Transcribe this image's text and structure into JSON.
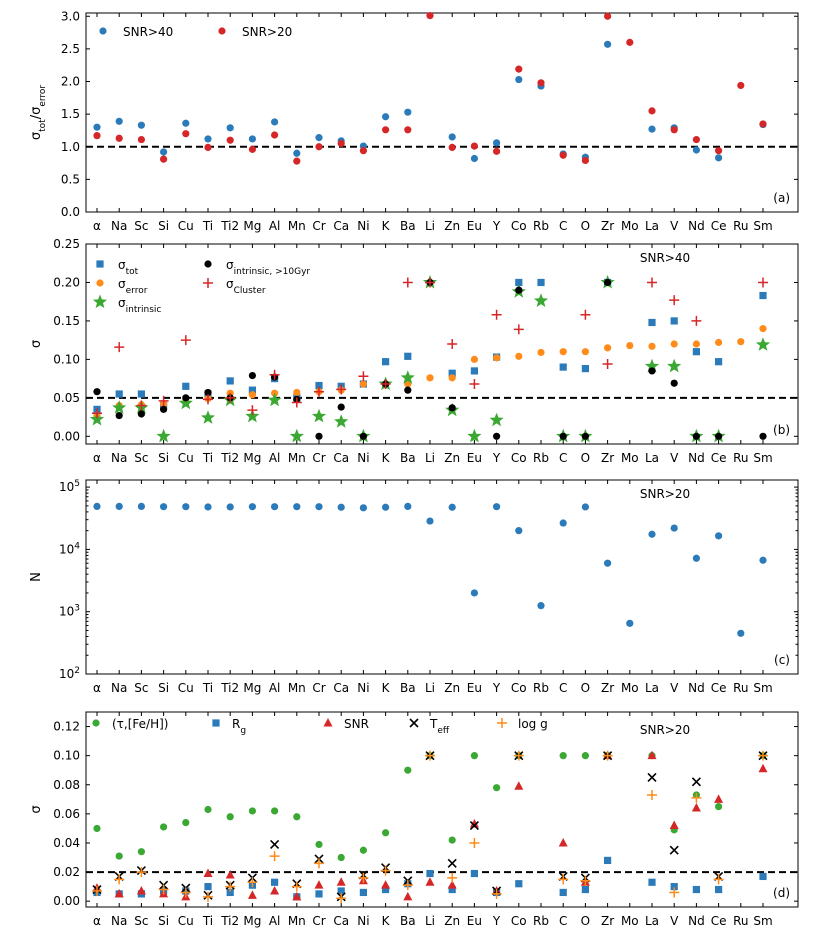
{
  "colors": {
    "blue": "#2b7bba",
    "red": "#d62728",
    "orange": "#ff8c1a",
    "green": "#3aa832",
    "black": "#000000"
  },
  "chart_data": [
    {
      "type": "scatter",
      "panel": "a",
      "title": "",
      "ylabel": "σ_tot/σ_error",
      "yscale": "linear",
      "ylim": [
        0,
        3.05
      ],
      "yticks": [
        0.0,
        0.5,
        1.0,
        1.5,
        2.0,
        2.5,
        3.0
      ],
      "ytick_labels": [
        "0.0",
        "0.5",
        "1.0",
        "1.5",
        "2.0",
        "2.5",
        "3.0"
      ],
      "reference_line": 1.0,
      "panel_label": "(a)",
      "annotation": "",
      "categories": [
        "α",
        "Na",
        "Sc",
        "Si",
        "Cu",
        "Ti",
        "Ti2",
        "Mg",
        "Al",
        "Mn",
        "Cr",
        "Ca",
        "Ni",
        "K",
        "Ba",
        "Li",
        "Zn",
        "Eu",
        "Y",
        "Co",
        "Rb",
        "C",
        "O",
        "Zr",
        "Mo",
        "La",
        "V",
        "Nd",
        "Ce",
        "Ru",
        "Sm"
      ],
      "series": [
        {
          "name": "SNR>40",
          "color": "blue",
          "marker": "circle",
          "values": [
            1.3,
            1.39,
            1.33,
            0.92,
            1.36,
            1.12,
            1.29,
            1.12,
            1.38,
            0.9,
            1.14,
            1.09,
            1.01,
            1.46,
            1.53,
            null,
            1.15,
            0.82,
            1.06,
            2.03,
            1.93,
            0.89,
            0.84,
            2.57,
            null,
            1.27,
            1.29,
            0.95,
            0.83,
            null,
            1.34
          ]
        },
        {
          "name": "SNR>20",
          "color": "red",
          "marker": "circle",
          "values": [
            1.17,
            1.13,
            1.11,
            0.81,
            1.2,
            0.99,
            1.1,
            0.96,
            1.18,
            0.78,
            1.0,
            1.05,
            0.94,
            1.26,
            1.26,
            3.01,
            0.99,
            1.01,
            0.93,
            2.19,
            1.98,
            0.87,
            0.79,
            3.0,
            2.6,
            1.55,
            1.26,
            1.11,
            0.94,
            1.94,
            1.35
          ]
        }
      ],
      "legend": {
        "position": "top-left",
        "entries": [
          "SNR>40",
          "SNR>20"
        ]
      }
    },
    {
      "type": "scatter",
      "panel": "b",
      "title": "",
      "ylabel": "σ",
      "yscale": "linear",
      "ylim": [
        -0.01,
        0.25
      ],
      "yticks": [
        0.0,
        0.05,
        0.1,
        0.15,
        0.2,
        0.25
      ],
      "ytick_labels": [
        "0.00",
        "0.05",
        "0.10",
        "0.15",
        "0.20",
        "0.25"
      ],
      "reference_line": 0.05,
      "panel_label": "(b)",
      "annotation": "SNR>40",
      "categories": [
        "α",
        "Na",
        "Sc",
        "Si",
        "Cu",
        "Ti",
        "Ti2",
        "Mg",
        "Al",
        "Mn",
        "Cr",
        "Ca",
        "Ni",
        "K",
        "Ba",
        "Li",
        "Zn",
        "Eu",
        "Y",
        "Co",
        "Rb",
        "C",
        "O",
        "Zr",
        "Mo",
        "La",
        "V",
        "Nd",
        "Ce",
        "Ru",
        "Sm"
      ],
      "series": [
        {
          "name": "σ_tot",
          "color": "blue",
          "marker": "square",
          "values": [
            0.035,
            0.055,
            0.055,
            0.04,
            0.065,
            0.055,
            0.072,
            0.06,
            0.075,
            0.05,
            0.066,
            0.065,
            0.068,
            0.097,
            0.104,
            null,
            0.082,
            0.085,
            0.103,
            0.2,
            0.2,
            0.09,
            0.088,
            0.2,
            null,
            0.148,
            0.15,
            0.11,
            0.097,
            null,
            0.183
          ]
        },
        {
          "name": "σ_error",
          "color": "orange",
          "marker": "circle",
          "values": [
            0.027,
            0.04,
            0.041,
            0.042,
            0.048,
            0.049,
            0.056,
            0.054,
            0.056,
            0.057,
            0.058,
            0.06,
            0.068,
            0.067,
            0.068,
            0.076,
            0.076,
            0.1,
            0.102,
            0.104,
            0.109,
            0.11,
            0.11,
            0.115,
            0.118,
            0.117,
            0.12,
            0.12,
            0.122,
            0.123,
            0.14
          ]
        },
        {
          "name": "σ_intrinsic",
          "color": "green",
          "marker": "star",
          "values": [
            0.022,
            0.037,
            0.037,
            0.0,
            0.043,
            0.024,
            0.047,
            0.026,
            0.047,
            0.0,
            0.026,
            0.019,
            0.0,
            0.068,
            0.076,
            0.2,
            0.034,
            0.0,
            0.021,
            0.188,
            0.176,
            0.0,
            0.0,
            0.2,
            null,
            0.091,
            0.091,
            0.0,
            0.0,
            null,
            0.119
          ]
        },
        {
          "name": "σ_intrinsic, >10Gyr",
          "color": "black",
          "marker": "circle",
          "values": [
            0.058,
            0.027,
            0.029,
            0.035,
            0.05,
            0.057,
            0.05,
            0.079,
            0.077,
            0.048,
            0.0,
            0.038,
            0.0,
            0.068,
            0.06,
            0.2,
            0.037,
            null,
            0.0,
            0.19,
            null,
            0.0,
            0.0,
            0.2,
            null,
            0.085,
            0.069,
            0.0,
            0.0,
            null,
            0.0
          ]
        },
        {
          "name": "σ_Cluster",
          "color": "red",
          "marker": "plus",
          "values": [
            0.03,
            0.116,
            0.04,
            0.046,
            0.125,
            0.048,
            0.05,
            0.034,
            0.08,
            0.044,
            0.058,
            0.061,
            0.078,
            0.068,
            0.2,
            0.2,
            0.12,
            0.068,
            0.158,
            0.139,
            null,
            null,
            0.158,
            0.094,
            null,
            0.2,
            0.177,
            0.15,
            null,
            null,
            0.2
          ]
        }
      ],
      "legend": {
        "position": "top-left",
        "entries": [
          "σ_tot",
          "σ_error",
          "σ_intrinsic",
          "σ_intrinsic, >10Gyr",
          "σ_Cluster"
        ]
      }
    },
    {
      "type": "scatter",
      "panel": "c",
      "title": "",
      "ylabel": "N",
      "yscale": "log",
      "ylim": [
        100,
        130000
      ],
      "yticks": [
        100,
        1000,
        10000,
        100000
      ],
      "ytick_labels": [
        "10^2",
        "10^3",
        "10^4",
        "10^5"
      ],
      "reference_line": null,
      "panel_label": "(c)",
      "annotation": "SNR>20",
      "categories": [
        "α",
        "Na",
        "Sc",
        "Si",
        "Cu",
        "Ti",
        "Ti2",
        "Mg",
        "Al",
        "Mn",
        "Cr",
        "Ca",
        "Ni",
        "K",
        "Ba",
        "Li",
        "Zn",
        "Eu",
        "Y",
        "Co",
        "Rb",
        "C",
        "O",
        "Zr",
        "Mo",
        "La",
        "V",
        "Nd",
        "Ce",
        "Ru",
        "Sm"
      ],
      "series": [
        {
          "name": "N",
          "color": "blue",
          "marker": "circle",
          "values": [
            49000,
            49000,
            49000,
            48500,
            48500,
            48000,
            48000,
            48500,
            48500,
            48500,
            48500,
            47500,
            46500,
            47500,
            49000,
            28500,
            47500,
            2000,
            48500,
            20000,
            1250,
            26500,
            48000,
            6000,
            650,
            17500,
            22000,
            7200,
            16500,
            450,
            6700
          ]
        }
      ]
    },
    {
      "type": "scatter",
      "panel": "d",
      "title": "",
      "ylabel": "σ",
      "yscale": "linear",
      "ylim": [
        -0.004,
        0.13
      ],
      "yticks": [
        0.0,
        0.02,
        0.04,
        0.06,
        0.08,
        0.1,
        0.12
      ],
      "ytick_labels": [
        "0.00",
        "0.02",
        "0.04",
        "0.06",
        "0.08",
        "0.10",
        "0.12"
      ],
      "reference_line": 0.02,
      "panel_label": "(d)",
      "annotation": "SNR>20",
      "categories": [
        "α",
        "Na",
        "Sc",
        "Si",
        "Cu",
        "Ti",
        "Ti2",
        "Mg",
        "Al",
        "Mn",
        "Cr",
        "Ca",
        "Ni",
        "K",
        "Ba",
        "Li",
        "Zn",
        "Eu",
        "Y",
        "Co",
        "Rb",
        "C",
        "O",
        "Zr",
        "Mo",
        "La",
        "V",
        "Nd",
        "Ce",
        "Ru",
        "Sm"
      ],
      "series": [
        {
          "name": "(τ,[Fe/H])",
          "color": "green",
          "marker": "circle",
          "values": [
            0.05,
            0.031,
            0.034,
            0.051,
            0.054,
            0.063,
            0.058,
            0.062,
            0.062,
            0.058,
            0.039,
            0.03,
            0.035,
            0.047,
            0.09,
            0.1,
            0.042,
            0.1,
            0.078,
            0.1,
            null,
            0.1,
            0.1,
            0.1,
            null,
            0.1,
            0.049,
            0.073,
            0.065,
            null,
            0.1
          ]
        },
        {
          "name": "R_g",
          "color": "blue",
          "marker": "square",
          "values": [
            0.006,
            0.005,
            0.005,
            0.007,
            0.007,
            0.01,
            0.006,
            0.011,
            0.013,
            0.003,
            0.005,
            0.007,
            0.006,
            0.008,
            0.012,
            0.019,
            0.008,
            0.019,
            0.006,
            0.012,
            null,
            0.006,
            0.008,
            0.028,
            null,
            0.013,
            0.01,
            0.008,
            0.008,
            null,
            0.017
          ]
        },
        {
          "name": "SNR",
          "color": "red",
          "marker": "triangle",
          "values": [
            0.009,
            0.005,
            0.007,
            0.005,
            0.003,
            0.019,
            0.018,
            0.004,
            0.007,
            0.003,
            0.011,
            0.013,
            0.014,
            0.011,
            0.003,
            0.013,
            0.011,
            0.053,
            0.007,
            0.079,
            null,
            0.04,
            0.013,
            0.1,
            null,
            0.1,
            0.052,
            0.064,
            0.07,
            null,
            0.091
          ]
        },
        {
          "name": "T_eff",
          "color": "black",
          "marker": "cross",
          "values": [
            0.008,
            0.017,
            0.021,
            0.011,
            0.009,
            0.004,
            0.011,
            0.016,
            0.039,
            0.012,
            0.029,
            0.003,
            0.018,
            0.023,
            0.014,
            0.1,
            0.026,
            0.052,
            0.007,
            0.1,
            null,
            0.017,
            0.016,
            0.1,
            null,
            0.085,
            0.035,
            0.082,
            0.017,
            null,
            0.1
          ]
        },
        {
          "name": "log g",
          "color": "orange",
          "marker": "plus",
          "values": [
            0.007,
            0.015,
            0.02,
            0.008,
            0.006,
            0.003,
            0.01,
            0.013,
            0.031,
            0.01,
            0.026,
            0.002,
            0.016,
            0.021,
            0.011,
            0.1,
            0.016,
            0.04,
            0.005,
            0.1,
            null,
            0.015,
            0.014,
            0.1,
            null,
            0.073,
            0.006,
            0.071,
            0.015,
            null,
            0.1
          ]
        }
      ],
      "legend": {
        "position": "top",
        "entries": [
          "(τ,[Fe/H])",
          "R_g",
          "SNR",
          "T_eff",
          "log g"
        ]
      }
    }
  ]
}
